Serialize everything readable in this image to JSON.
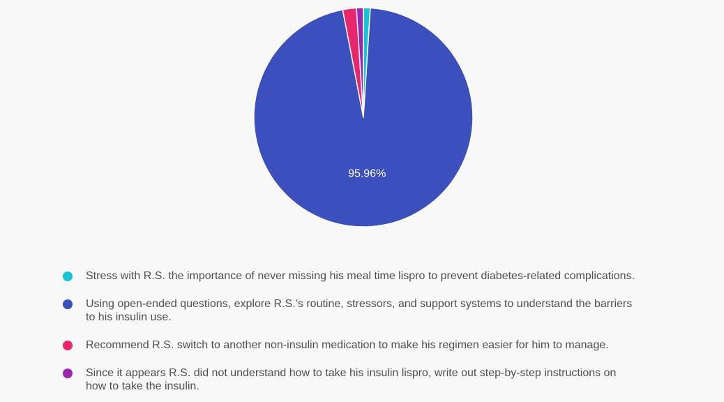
{
  "chart_data": {
    "type": "pie",
    "start_angle_deg": 0,
    "direction": "clockwise",
    "slices": [
      {
        "label": "Stress with R.S. the importance of never missing his meal time lispro to prevent diabetes-related complications.",
        "value": 1.01,
        "color": "#17c3d6",
        "value_label": ""
      },
      {
        "label": "Using open-ended questions, explore R.S.’s routine, stressors, and support systems to understand the barriers to his insulin use.",
        "value": 95.96,
        "color": "#3b4fbd",
        "value_label": "95.96%"
      },
      {
        "label": "Recommend R.S. switch to another non-insulin medication to make his regimen easier for him to manage.",
        "value": 2.02,
        "color": "#e8266b",
        "value_label": ""
      },
      {
        "label": "Since it appears R.S. did not understand how to take his insulin lispro, write out step-by-step instructions on how to take the insulin.",
        "value": 1.01,
        "color": "#9b27b0",
        "value_label": ""
      }
    ]
  }
}
